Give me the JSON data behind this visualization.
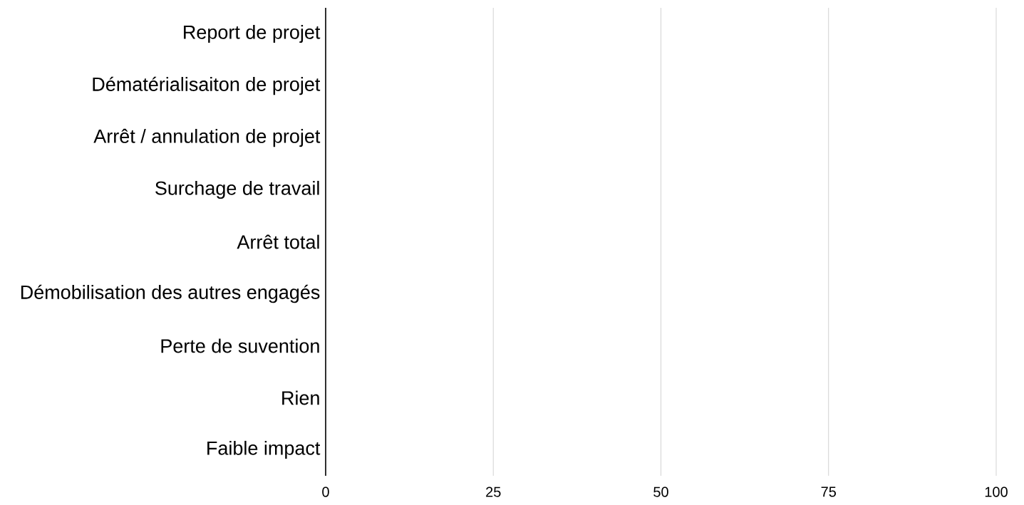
{
  "chart_data": {
    "type": "bar",
    "orientation": "horizontal",
    "categories": [
      "Report de projet",
      "Dématérialisaiton de projet",
      "Arrêt / annulation de projet",
      "Surchage de travail",
      "Arrêt total",
      "Démobilisation des autres engagés",
      "Perte de suvention",
      "Rien",
      "Faible impact"
    ],
    "values": [
      0,
      0,
      0,
      0,
      0,
      0,
      0,
      0,
      0
    ],
    "xlim": [
      0,
      100
    ],
    "xticks": [
      0,
      25,
      50,
      75,
      100
    ],
    "grid": "x"
  }
}
